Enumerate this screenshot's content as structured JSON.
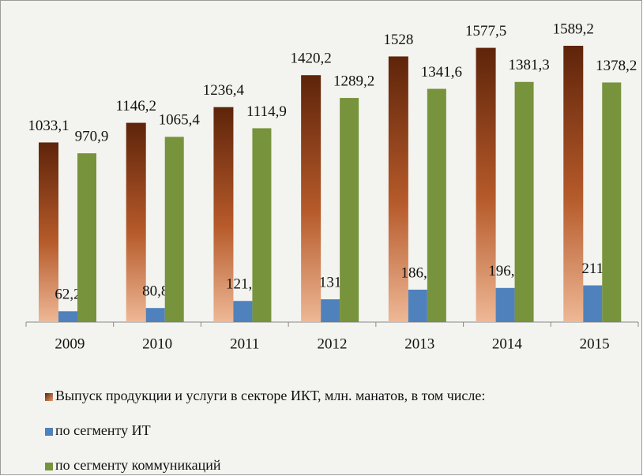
{
  "chart_data": {
    "type": "bar",
    "categories": [
      "2009",
      "2010",
      "2011",
      "2012",
      "2013",
      "2014",
      "2015"
    ],
    "series": [
      {
        "name": "Выпуск продукции и услуги в секторе ИКТ, млн. манатов, в том числе:",
        "color": "#a04a20",
        "values": [
          1033.1,
          1146.2,
          1236.4,
          1420.2,
          1528,
          1577.5,
          1589.2
        ],
        "value_labels": [
          "1033,1",
          "1146,2",
          "1236,4",
          "1420,2",
          "1528",
          "1577,5",
          "1589,2"
        ]
      },
      {
        "name": "по сегменту ИТ",
        "color": "#4f81bd",
        "values": [
          62.2,
          80.8,
          121.5,
          131,
          186.4,
          196.2,
          211
        ],
        "value_labels": [
          "62,2",
          "80,8",
          "121,5",
          "131",
          "186,4",
          "196,2",
          "211"
        ]
      },
      {
        "name": "по сегменту коммуникаций",
        "color": "#77933c",
        "values": [
          970.9,
          1065.4,
          1114.9,
          1289.2,
          1341.6,
          1381.3,
          1378.2
        ],
        "value_labels": [
          "970,9",
          "1065,4",
          "1114,9",
          "1289,2",
          "1341,6",
          "1381,3",
          "1378,2"
        ]
      }
    ]
  }
}
